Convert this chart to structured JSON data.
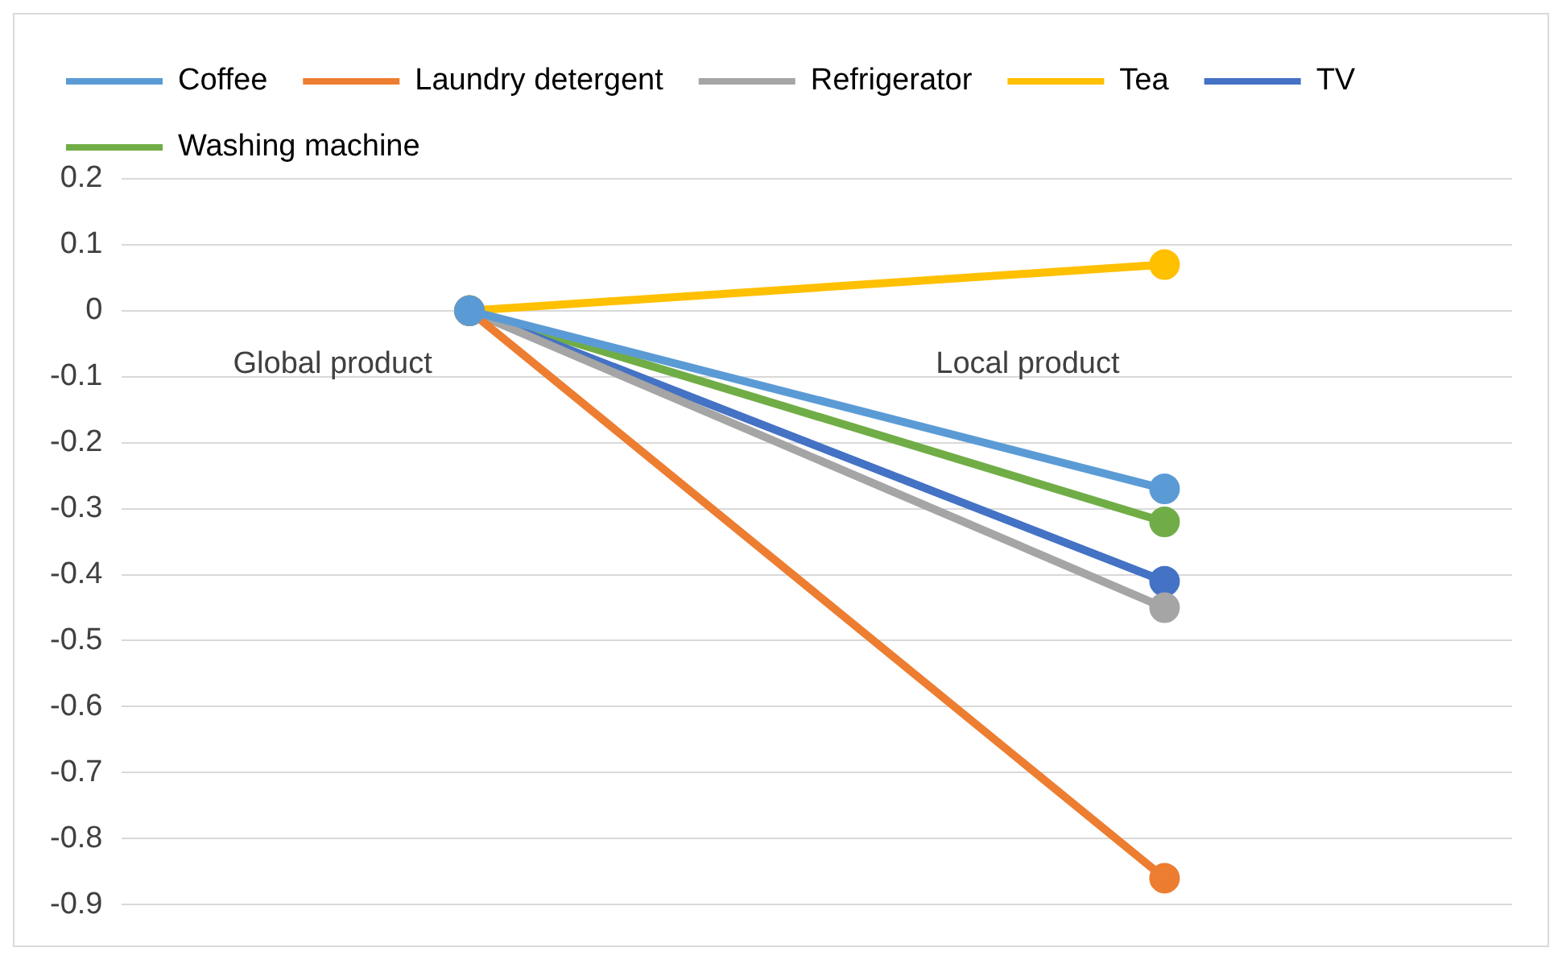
{
  "chart_data": {
    "type": "line",
    "categories": [
      "Global product",
      "Local product"
    ],
    "series": [
      {
        "name": "Coffee",
        "color": "#5b9bd5",
        "values": [
          0,
          -0.27
        ]
      },
      {
        "name": "Laundry detergent",
        "color": "#ed7d31",
        "values": [
          0,
          -0.86
        ]
      },
      {
        "name": "Refrigerator",
        "color": "#a5a5a5",
        "values": [
          0,
          -0.45
        ]
      },
      {
        "name": "Tea",
        "color": "#ffc000",
        "values": [
          0,
          0.07
        ]
      },
      {
        "name": "TV",
        "color": "#4472c4",
        "values": [
          0,
          -0.41
        ]
      },
      {
        "name": "Washing machine",
        "color": "#70ad47",
        "values": [
          0,
          -0.32
        ]
      }
    ],
    "ylim": [
      -0.9,
      0.2
    ],
    "yticks": [
      -0.9,
      -0.8,
      -0.7,
      -0.6,
      -0.5,
      -0.4,
      -0.3,
      -0.2,
      -0.1,
      0,
      0.1,
      0.2
    ],
    "grid": "y",
    "legend": "top",
    "marker": "circle",
    "line_style": "solid"
  }
}
